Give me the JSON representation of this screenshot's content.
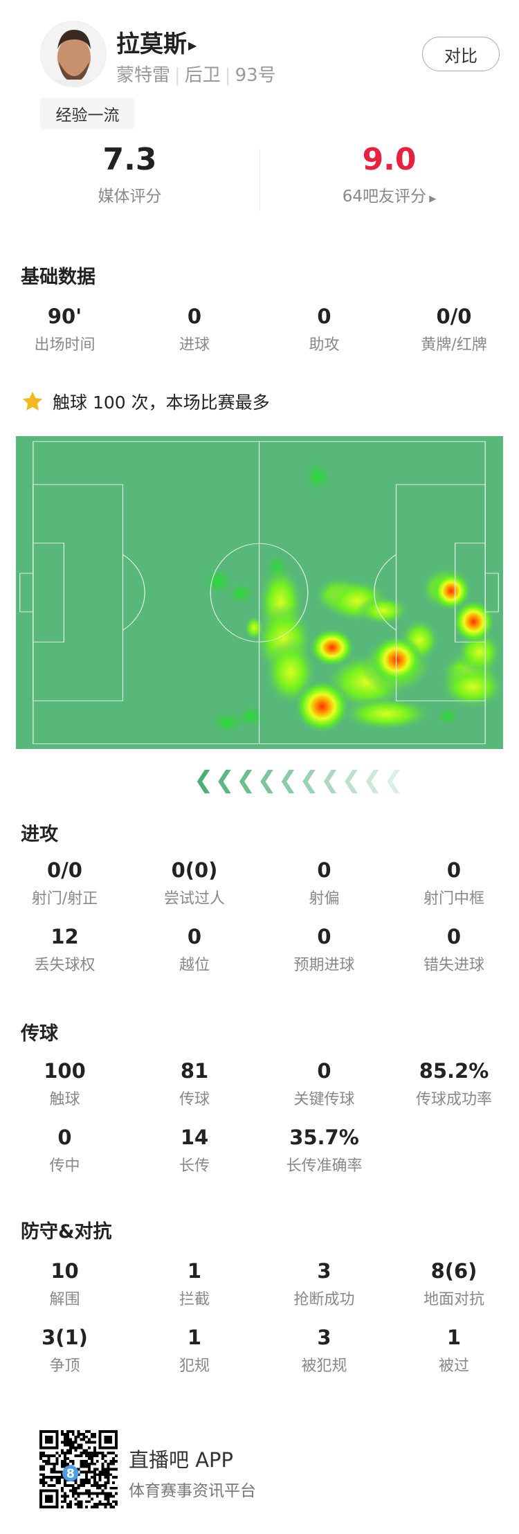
{
  "player": {
    "name": "拉莫斯",
    "team": "蒙特雷",
    "position": "后卫",
    "number": "93号",
    "tag": "经验一流",
    "compare_label": "对比"
  },
  "ratings": {
    "media": {
      "value": "7.3",
      "label": "媒体评分"
    },
    "fans": {
      "value": "9.0",
      "label": "64吧友评分",
      "color": "#e8213f"
    }
  },
  "basic": {
    "title": "基础数据",
    "items": [
      {
        "v": "90'",
        "l": "出场时间"
      },
      {
        "v": "0",
        "l": "进球"
      },
      {
        "v": "0",
        "l": "助攻"
      },
      {
        "v": "0/0",
        "l": "黄牌/红牌"
      }
    ]
  },
  "highlight": {
    "text": "触球 100 次，本场比赛最多",
    "icon": "star-icon"
  },
  "attack": {
    "title": "进攻",
    "items": [
      {
        "v": "0/0",
        "l": "射门/射正"
      },
      {
        "v": "0(0)",
        "l": "尝试过人"
      },
      {
        "v": "0",
        "l": "射偏"
      },
      {
        "v": "0",
        "l": "射门中框"
      },
      {
        "v": "12",
        "l": "丢失球权"
      },
      {
        "v": "0",
        "l": "越位"
      },
      {
        "v": "0",
        "l": "预期进球"
      },
      {
        "v": "0",
        "l": "错失进球"
      }
    ]
  },
  "passing": {
    "title": "传球",
    "items": [
      {
        "v": "100",
        "l": "触球"
      },
      {
        "v": "81",
        "l": "传球"
      },
      {
        "v": "0",
        "l": "关键传球"
      },
      {
        "v": "85.2%",
        "l": "传球成功率"
      },
      {
        "v": "0",
        "l": "传中"
      },
      {
        "v": "14",
        "l": "长传"
      },
      {
        "v": "35.7%",
        "l": "长传准确率"
      }
    ]
  },
  "defense": {
    "title": "防守&对抗",
    "items": [
      {
        "v": "10",
        "l": "解围"
      },
      {
        "v": "1",
        "l": "拦截"
      },
      {
        "v": "3",
        "l": "抢断成功"
      },
      {
        "v": "8(6)",
        "l": "地面对抗"
      },
      {
        "v": "3(1)",
        "l": "争顶"
      },
      {
        "v": "1",
        "l": "犯规"
      },
      {
        "v": "3",
        "l": "被犯规"
      },
      {
        "v": "1",
        "l": "被过"
      }
    ]
  },
  "footer": {
    "app": "直播吧 APP",
    "slogan": "体育赛事资讯平台"
  },
  "colors": {
    "pitch": "#57b87a",
    "accent": "#e8213f"
  }
}
